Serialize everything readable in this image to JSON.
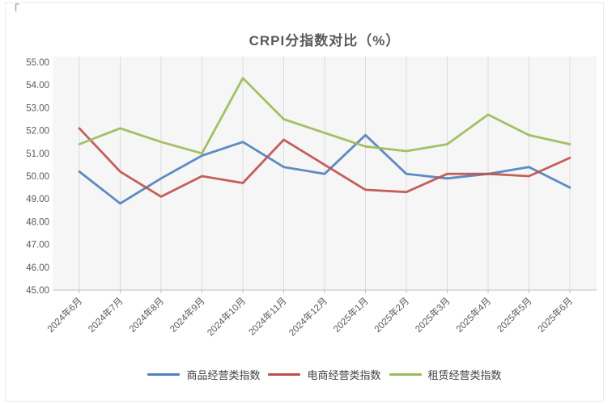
{
  "corner_mark": "「",
  "colors": {
    "title": "#595959",
    "axis_label": "#595959",
    "legend_text": "#3f3f3f",
    "gridline": "#dcdcdc",
    "axis_line": "#bfbfbf",
    "plot_fill": "#f3f3f3",
    "series_blue": "#4F81BD",
    "series_red": "#C0504D",
    "series_green": "#9BBB59"
  },
  "chart_data": {
    "type": "line",
    "title": "CRPI分指数对比（%）",
    "xlabel": "",
    "ylabel": "",
    "ylim": [
      45,
      55
    ],
    "ytick_step": 1,
    "ytick_labels": [
      "55.00",
      "54.00",
      "53.00",
      "52.00",
      "51.00",
      "50.00",
      "49.00",
      "48.00",
      "47.00",
      "46.00",
      "45.00"
    ],
    "grid": "vertical-only",
    "legend_position": "bottom",
    "categories": [
      "2024年6月",
      "2024年7月",
      "2024年8月",
      "2024年9月",
      "2024年10月",
      "2024年11月",
      "2024年12月",
      "2025年1月",
      "2025年2月",
      "2025年3月",
      "2025年4月",
      "2025年5月",
      "2025年6月"
    ],
    "series": [
      {
        "name": "商品经营类指数",
        "color": "#4F81BD",
        "values": [
          50.2,
          48.8,
          49.9,
          50.9,
          51.5,
          50.4,
          50.1,
          51.8,
          50.1,
          49.9,
          50.1,
          50.4,
          49.5
        ]
      },
      {
        "name": "电商经营类指数",
        "color": "#C0504D",
        "values": [
          52.1,
          50.2,
          49.1,
          50.0,
          49.7,
          51.6,
          50.5,
          49.4,
          49.3,
          50.1,
          50.1,
          50.0,
          50.8
        ]
      },
      {
        "name": "租赁经营类指数",
        "color": "#9BBB59",
        "values": [
          51.4,
          52.1,
          51.5,
          51.0,
          54.3,
          52.5,
          51.9,
          51.3,
          51.1,
          51.4,
          52.7,
          51.8,
          51.4
        ]
      }
    ]
  }
}
